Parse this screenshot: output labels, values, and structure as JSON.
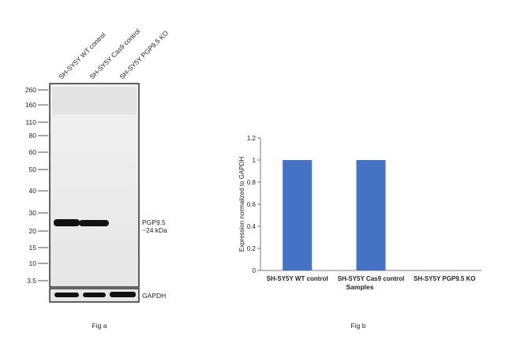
{
  "figure_a": {
    "lane_labels": [
      "SH-SY5Y WT control",
      "SH-SY5Y Cas9 control",
      "SH-SY5Y PGP9.5 KO"
    ],
    "mw_markers": [
      "260",
      "160",
      "110",
      "80",
      "60",
      "50",
      "40",
      "30",
      "20",
      "15",
      "10",
      "3.5"
    ],
    "band_label_line1": "PGP9.5",
    "band_label_line2": "~24 kDa",
    "loading_label": "GAPDH",
    "caption": "Fig a"
  },
  "figure_b": {
    "caption": "Fig b"
  },
  "chart_data": {
    "type": "bar",
    "categories": [
      "SH-SY5Y WT control",
      "SH-SY5Y Cas9 control",
      "SH-SY5Y PGP9.5 KO"
    ],
    "values": [
      1,
      1,
      0
    ],
    "xlabel": "Samples",
    "ylabel": "Expression normalized to GAPDH",
    "ylim": [
      0,
      1.2
    ],
    "yticks": [
      "0",
      "0.2",
      "0.4",
      "0.6",
      "0.8",
      "1",
      "1.2"
    ],
    "bar_color": "#4472C4",
    "grid": false
  }
}
